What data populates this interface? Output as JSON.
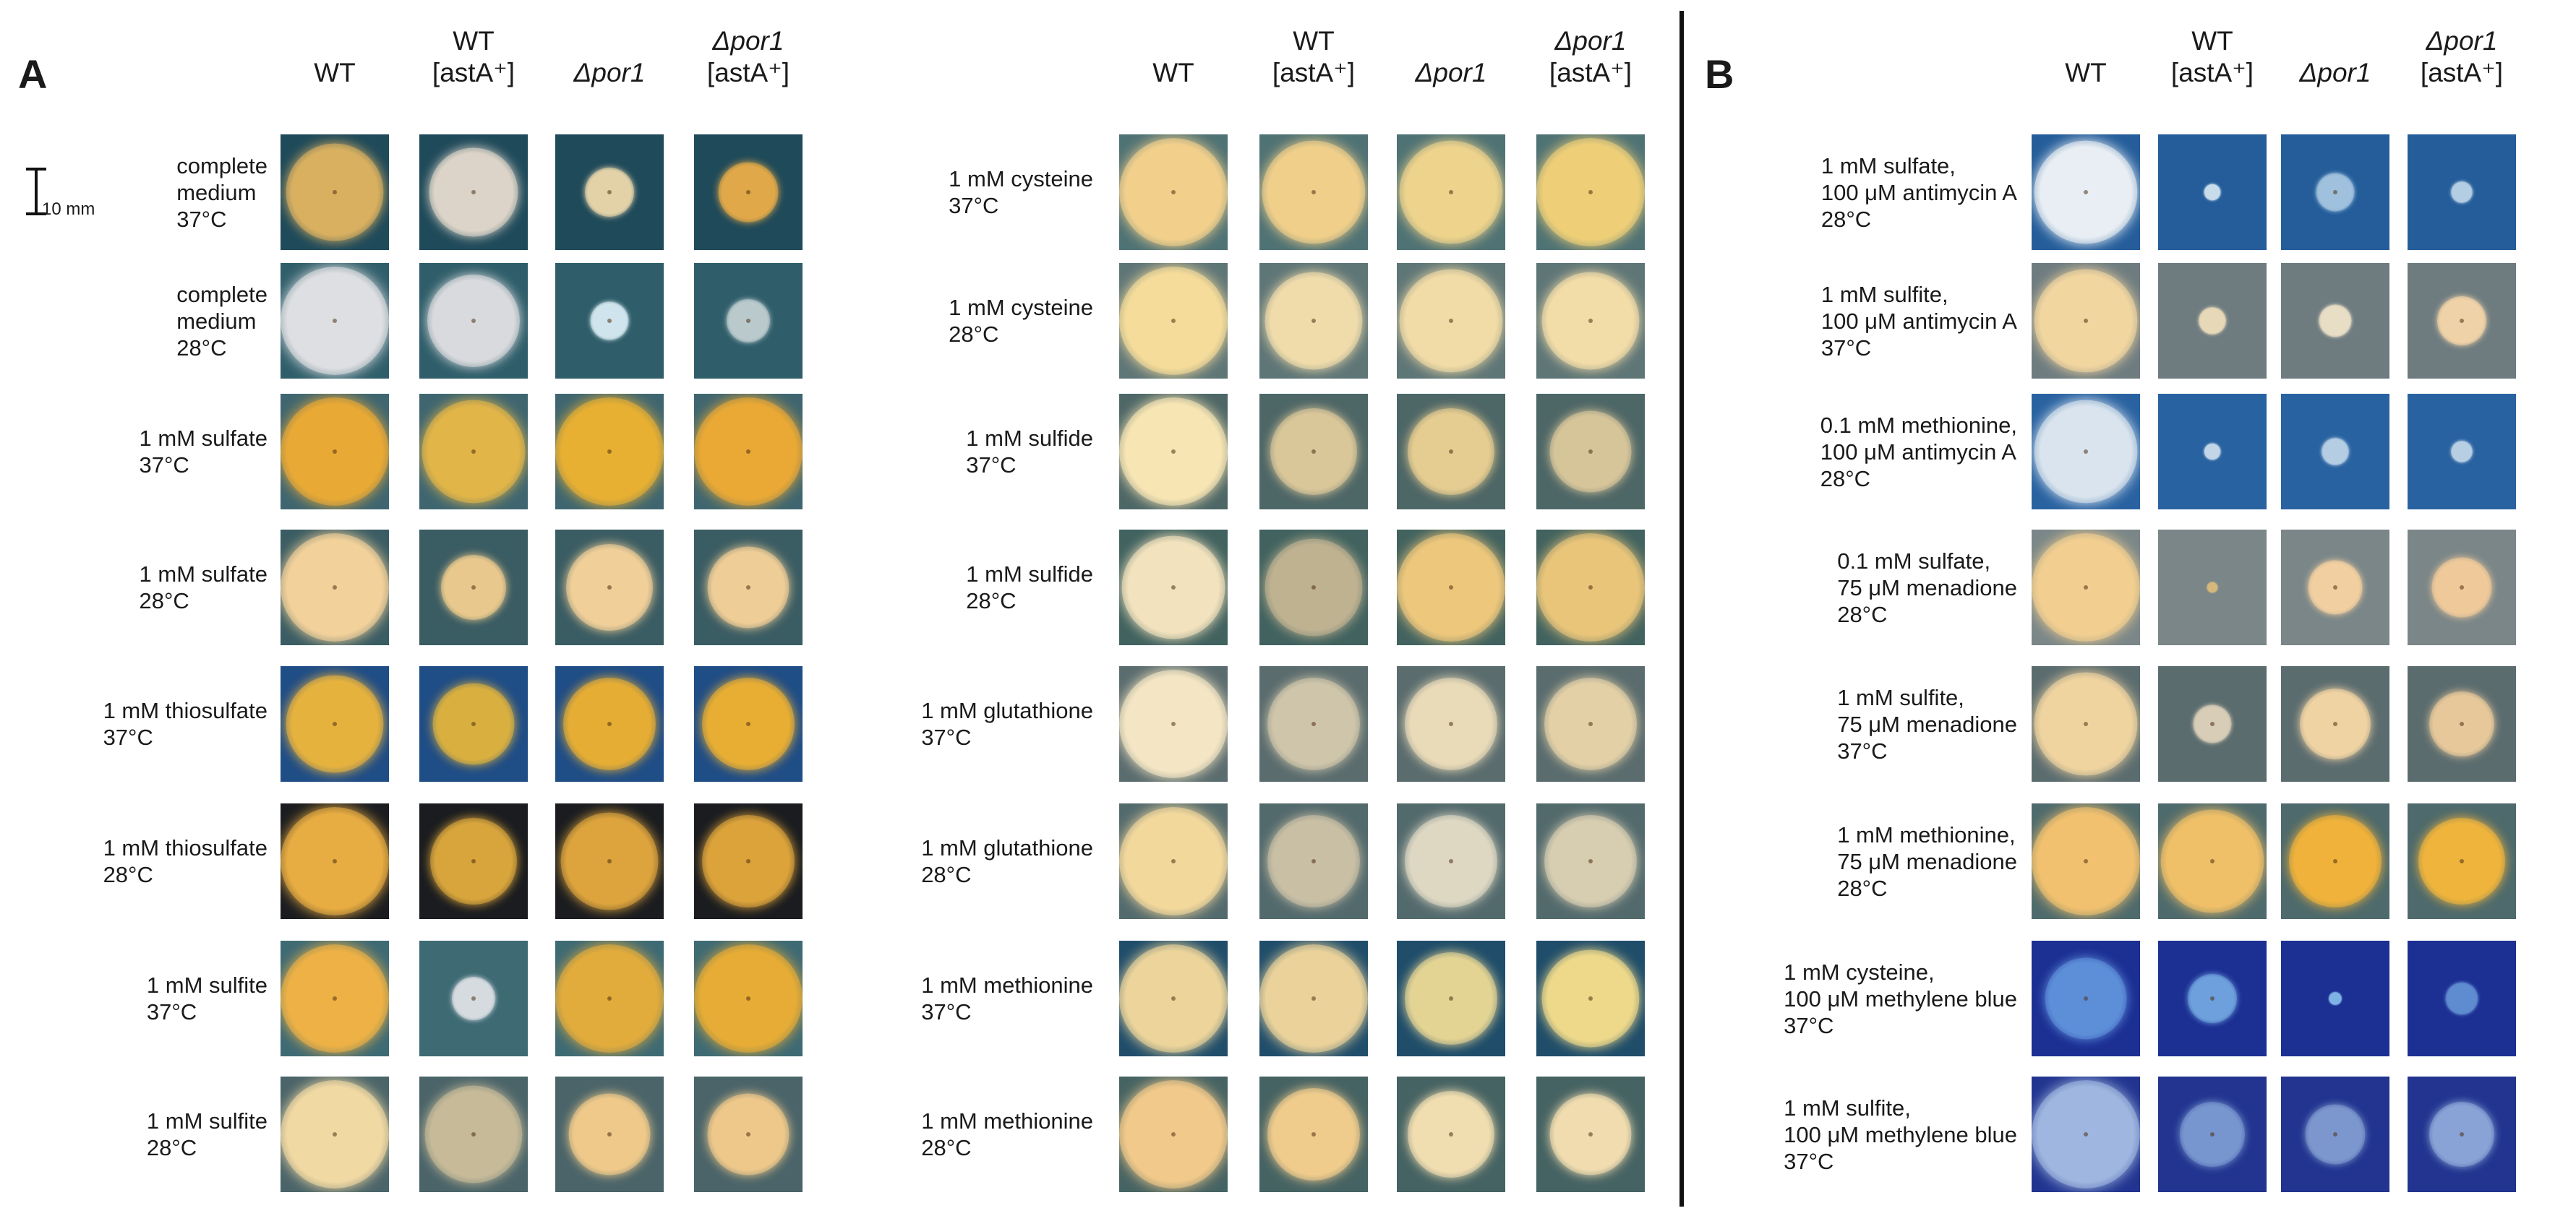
{
  "panels": [
    {
      "letter": "A",
      "columns": [
        {
          "line1": "WT",
          "line2": ""
        },
        {
          "line1": "WT",
          "line2": "[astA⁺]"
        },
        {
          "line1": "Δpor1",
          "line2": ""
        },
        {
          "line1": "Δpor1",
          "line2": "[astA⁺]"
        }
      ],
      "scale_label": "10 mm",
      "rows": [
        {
          "label": "complete\nmedium\n37°C",
          "bg": "#1f4a5a",
          "colonies": [
            {
              "size": 0.9,
              "color": "#d9b060"
            },
            {
              "size": 0.82,
              "color": "#dcd4c8"
            },
            {
              "size": 0.45,
              "color": "#e3d2a8"
            },
            {
              "size": 0.55,
              "color": "#e0a848"
            }
          ]
        },
        {
          "label": "complete\nmedium\n28°C",
          "bg": "#2f5e6a",
          "colonies": [
            {
              "size": 1.0,
              "color": "#dedfe2"
            },
            {
              "size": 0.85,
              "color": "#d9dadd"
            },
            {
              "size": 0.35,
              "color": "#cfe4ec"
            },
            {
              "size": 0.4,
              "color": "#b9c9cc"
            }
          ]
        },
        {
          "label": "1 mM sulfate\n37°C",
          "bg": "#3f6670",
          "colonies": [
            {
              "size": 1.0,
              "color": "#e9a935"
            },
            {
              "size": 0.95,
              "color": "#e2b548"
            },
            {
              "size": 1.0,
              "color": "#e8b032"
            },
            {
              "size": 1.0,
              "color": "#eaa935"
            }
          ]
        },
        {
          "label": "1 mM sulfate\n28°C",
          "bg": "#3a5c63",
          "colonies": [
            {
              "size": 1.0,
              "color": "#f2d19a"
            },
            {
              "size": 0.6,
              "color": "#e8c88c"
            },
            {
              "size": 0.8,
              "color": "#f0cf98"
            },
            {
              "size": 0.75,
              "color": "#efcd96"
            }
          ]
        },
        {
          "label": "1 mM thiosulfate\n37°C",
          "bg": "#1f4d86",
          "colonies": [
            {
              "size": 0.9,
              "color": "#e6b23e"
            },
            {
              "size": 0.75,
              "color": "#d9b03f"
            },
            {
              "size": 0.85,
              "color": "#e5ad34"
            },
            {
              "size": 0.85,
              "color": "#e8ae33"
            }
          ]
        },
        {
          "label": "1 mM thiosulfate\n28°C",
          "bg": "#1a1c20",
          "colonies": [
            {
              "size": 1.0,
              "color": "#e7ac42"
            },
            {
              "size": 0.8,
              "color": "#d8a53c"
            },
            {
              "size": 0.9,
              "color": "#dda43d"
            },
            {
              "size": 0.85,
              "color": "#dca33b"
            }
          ]
        },
        {
          "label": "1 mM sulfite\n37°C",
          "bg": "#3e6a74",
          "colonies": [
            {
              "size": 1.0,
              "color": "#edb145"
            },
            {
              "size": 0.4,
              "color": "#d6dbe0"
            },
            {
              "size": 1.0,
              "color": "#e2ac3c"
            },
            {
              "size": 1.0,
              "color": "#e6ac35"
            }
          ]
        },
        {
          "label": "1 mM sulfite\n28°C",
          "bg": "#4a6469",
          "colonies": [
            {
              "size": 1.0,
              "color": "#f1d9a3"
            },
            {
              "size": 0.9,
              "color": "#c6ba98"
            },
            {
              "size": 0.75,
              "color": "#eec98a"
            },
            {
              "size": 0.75,
              "color": "#eec88a"
            }
          ]
        }
      ]
    },
    {
      "letter": "",
      "columns": [
        {
          "line1": "WT",
          "line2": ""
        },
        {
          "line1": "WT",
          "line2": "[astA⁺]"
        },
        {
          "line1": "Δpor1",
          "line2": ""
        },
        {
          "line1": "Δpor1",
          "line2": "[astA⁺]"
        }
      ],
      "scale_label": "",
      "rows": [
        {
          "label": "1 mM cysteine\n37°C",
          "bg": "#4f7274",
          "colonies": [
            {
              "size": 1.0,
              "color": "#f2d08c"
            },
            {
              "size": 0.95,
              "color": "#f0cf8a"
            },
            {
              "size": 0.95,
              "color": "#edd38c"
            },
            {
              "size": 1.0,
              "color": "#eecf78"
            }
          ]
        },
        {
          "label": "1 mM cysteine\n28°C",
          "bg": "#5f7677",
          "colonies": [
            {
              "size": 1.0,
              "color": "#f6dc9a"
            },
            {
              "size": 0.9,
              "color": "#f0dcab"
            },
            {
              "size": 0.95,
              "color": "#f1dba6"
            },
            {
              "size": 0.9,
              "color": "#f2dca8"
            }
          ]
        },
        {
          "label": "1 mM sulfide\n37°C",
          "bg": "#4d6666",
          "colonies": [
            {
              "size": 1.0,
              "color": "#f7e5b4"
            },
            {
              "size": 0.8,
              "color": "#d9c699"
            },
            {
              "size": 0.8,
              "color": "#e5cc90"
            },
            {
              "size": 0.75,
              "color": "#d7c59a"
            }
          ]
        },
        {
          "label": "1 mM sulfide\n28°C",
          "bg": "#41625f",
          "colonies": [
            {
              "size": 0.95,
              "color": "#f2e2bd"
            },
            {
              "size": 0.9,
              "color": "#bfb291"
            },
            {
              "size": 1.0,
              "color": "#edc77c"
            },
            {
              "size": 1.0,
              "color": "#e9c57a"
            }
          ]
        },
        {
          "label": "1 mM glutathione\n37°C",
          "bg": "#5a6c6e",
          "colonies": [
            {
              "size": 1.0,
              "color": "#f4e6c4"
            },
            {
              "size": 0.85,
              "color": "#cfc5aa"
            },
            {
              "size": 0.85,
              "color": "#e9dab8"
            },
            {
              "size": 0.85,
              "color": "#e3d0a7"
            }
          ]
        },
        {
          "label": "1 mM glutathione\n28°C",
          "bg": "#536a6d",
          "colonies": [
            {
              "size": 1.0,
              "color": "#f3d89c"
            },
            {
              "size": 0.85,
              "color": "#c9bfa5"
            },
            {
              "size": 0.85,
              "color": "#ded8c3"
            },
            {
              "size": 0.85,
              "color": "#d7cdb1"
            }
          ]
        },
        {
          "label": "1 mM methionine\n37°C",
          "bg": "#1f4d6a",
          "colonies": [
            {
              "size": 1.0,
              "color": "#ecd49a"
            },
            {
              "size": 1.0,
              "color": "#ead29a"
            },
            {
              "size": 0.85,
              "color": "#e4d494"
            },
            {
              "size": 0.9,
              "color": "#eed98a"
            }
          ]
        },
        {
          "label": "1 mM methionine\n28°C",
          "bg": "#466363",
          "colonies": [
            {
              "size": 1.0,
              "color": "#f1c98a"
            },
            {
              "size": 0.85,
              "color": "#efcb8c"
            },
            {
              "size": 0.8,
              "color": "#f0ddb0"
            },
            {
              "size": 0.75,
              "color": "#f0dcaf"
            }
          ]
        }
      ]
    },
    {
      "letter": "B",
      "columns": [
        {
          "line1": "WT",
          "line2": ""
        },
        {
          "line1": "WT",
          "line2": "[astA⁺]"
        },
        {
          "line1": "Δpor1",
          "line2": ""
        },
        {
          "line1": "Δpor1",
          "line2": "[astA⁺]"
        }
      ],
      "scale_label": "",
      "rows": [
        {
          "label": "1 mM sulfate,\n100 μM antimycin A\n28°C",
          "bg": "#245d9a",
          "colonies": [
            {
              "size": 0.95,
              "color": "#e8eef3"
            },
            {
              "size": 0.15,
              "color": "#c8dcec"
            },
            {
              "size": 0.35,
              "color": "#9fc1dd"
            },
            {
              "size": 0.2,
              "color": "#b3cde2"
            }
          ]
        },
        {
          "label": "1 mM sulfite,\n100 μM antimycin A\n37°C",
          "bg": "#6e7c80",
          "colonies": [
            {
              "size": 0.95,
              "color": "#f2d6a0"
            },
            {
              "size": 0.25,
              "color": "#e7d8b8"
            },
            {
              "size": 0.3,
              "color": "#e8ddc5"
            },
            {
              "size": 0.45,
              "color": "#f0d2a8"
            }
          ]
        },
        {
          "label": "0.1 mM methionine,\n100 μM antimycin A\n28°C",
          "bg": "#2962a1",
          "colonies": [
            {
              "size": 0.95,
              "color": "#d9e4ee"
            },
            {
              "size": 0.15,
              "color": "#c3d6e8"
            },
            {
              "size": 0.25,
              "color": "#b4cde3"
            },
            {
              "size": 0.2,
              "color": "#b8cfe3"
            }
          ]
        },
        {
          "label": "0.1 mM sulfate,\n75 μM menadione\n28°C",
          "bg": "#7a8688",
          "colonies": [
            {
              "size": 1.0,
              "color": "#f2cf90"
            },
            {
              "size": 0.1,
              "color": "#d6b87c"
            },
            {
              "size": 0.5,
              "color": "#f1cfa0"
            },
            {
              "size": 0.55,
              "color": "#efc99a"
            }
          ]
        },
        {
          "label": "1 mM sulfite,\n75 μM menadione\n37°C",
          "bg": "#5b6c6f",
          "colonies": [
            {
              "size": 0.95,
              "color": "#f0d4a0"
            },
            {
              "size": 0.35,
              "color": "#d8cdb7"
            },
            {
              "size": 0.65,
              "color": "#f0d3a3"
            },
            {
              "size": 0.6,
              "color": "#e6c89a"
            }
          ]
        },
        {
          "label": "1 mM methionine,\n75 μM menadione\n28°C",
          "bg": "#4e6a6c",
          "colonies": [
            {
              "size": 1.0,
              "color": "#f1c16f"
            },
            {
              "size": 0.95,
              "color": "#f0c068"
            },
            {
              "size": 0.85,
              "color": "#f0b23a"
            },
            {
              "size": 0.8,
              "color": "#efb43c"
            }
          ]
        },
        {
          "label": "1 mM cysteine,\n100 μM methylene blue\n37°C",
          "bg": "#1c2f93",
          "colonies": [
            {
              "size": 0.75,
              "color": "#5d8fd9"
            },
            {
              "size": 0.45,
              "color": "#6da0dc"
            },
            {
              "size": 0.12,
              "color": "#7fb3e6"
            },
            {
              "size": 0.3,
              "color": "#5f8cd0"
            }
          ]
        },
        {
          "label": "1 mM sulfite,\n100 μM methylene blue\n37°C",
          "bg": "#22348f",
          "colonies": [
            {
              "size": 1.0,
              "color": "#9fb7e0"
            },
            {
              "size": 0.6,
              "color": "#7795cf"
            },
            {
              "size": 0.55,
              "color": "#7c97cd"
            },
            {
              "size": 0.6,
              "color": "#8aa3d6"
            }
          ]
        }
      ]
    }
  ]
}
